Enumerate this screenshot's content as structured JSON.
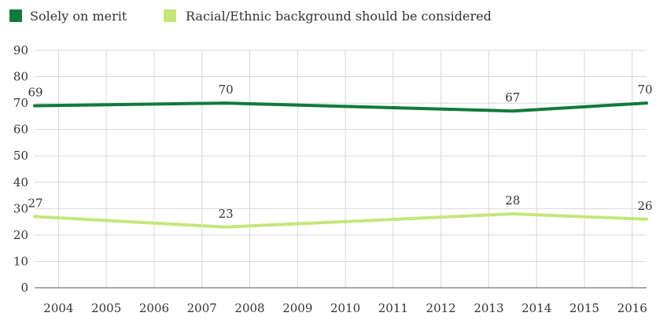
{
  "chart_data": {
    "type": "line",
    "x": [
      2003.5,
      2007.5,
      2013.5,
      2016.3
    ],
    "xticks": [
      2004,
      2005,
      2006,
      2007,
      2008,
      2009,
      2010,
      2011,
      2012,
      2013,
      2014,
      2015,
      2016
    ],
    "xtick_labels": [
      "2004",
      "2005",
      "2006",
      "2007",
      "2008",
      "2009",
      "2010",
      "2011",
      "2012",
      "2013",
      "2014",
      "2015",
      "2016"
    ],
    "xlim": [
      2003.5,
      2016.3
    ],
    "ylim": [
      0,
      90
    ],
    "yticks": [
      0,
      10,
      20,
      30,
      40,
      50,
      60,
      70,
      80,
      90
    ],
    "ytick_labels": [
      "0",
      "10",
      "20",
      "30",
      "40",
      "50",
      "60",
      "70",
      "80",
      "90"
    ],
    "grid": true,
    "legend_position": "top-left",
    "series": [
      {
        "name": "Solely on merit",
        "color": "#0f7a3a",
        "values": [
          69,
          70,
          67,
          70
        ],
        "labels": [
          "69",
          "70",
          "67",
          "70"
        ]
      },
      {
        "name": "Racial/Ethnic background should be considered",
        "color": "#c5e67a",
        "values": [
          27,
          23,
          28,
          26
        ],
        "labels": [
          "27",
          "23",
          "28",
          "26"
        ]
      }
    ]
  }
}
